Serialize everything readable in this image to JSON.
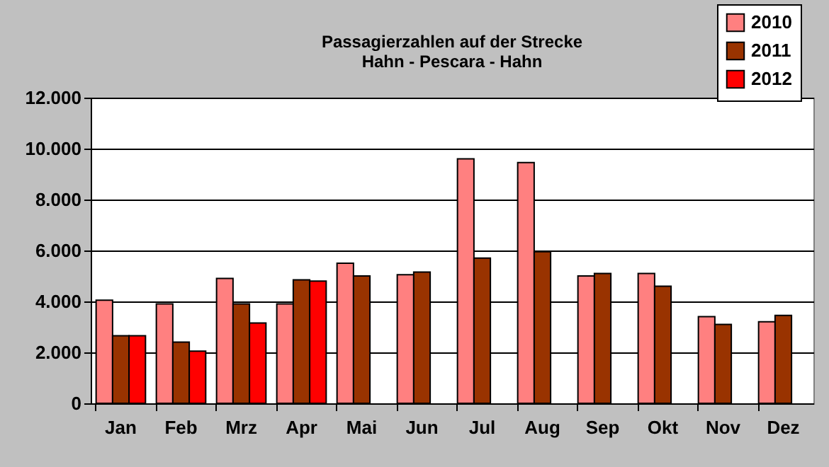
{
  "chart_data": {
    "type": "bar",
    "title": "Passagierzahlen auf der Strecke\nHahn - Pescara - Hahn",
    "categories": [
      "Jan",
      "Feb",
      "Mrz",
      "Apr",
      "Mai",
      "Jun",
      "Jul",
      "Aug",
      "Sep",
      "Okt",
      "Nov",
      "Dez"
    ],
    "series": [
      {
        "name": "2010",
        "color": "#ff8080",
        "values": [
          4050,
          3900,
          4900,
          3900,
          5500,
          5050,
          9600,
          9450,
          5000,
          5100,
          3400,
          3200
        ]
      },
      {
        "name": "2011",
        "color": "#993300",
        "values": [
          2650,
          2400,
          3900,
          4850,
          5000,
          5150,
          5700,
          5950,
          5100,
          4600,
          3100,
          3450
        ]
      },
      {
        "name": "2012",
        "color": "#ff0000",
        "values": [
          2650,
          2050,
          3150,
          4800,
          null,
          null,
          null,
          null,
          null,
          null,
          null,
          null
        ]
      }
    ],
    "ylim": [
      0,
      12000
    ],
    "yticks": [
      0,
      {
        "value": 2000,
        "label": "2.000"
      },
      {
        "value": 4000,
        "label": "4.000"
      },
      {
        "value": 6000,
        "label": "6.000"
      },
      {
        "value": 8000,
        "label": "8.000"
      },
      {
        "value": 10000,
        "label": "10.000"
      },
      {
        "value": 12000,
        "label": "12.000"
      }
    ],
    "grid": "y",
    "legend": "top right"
  }
}
